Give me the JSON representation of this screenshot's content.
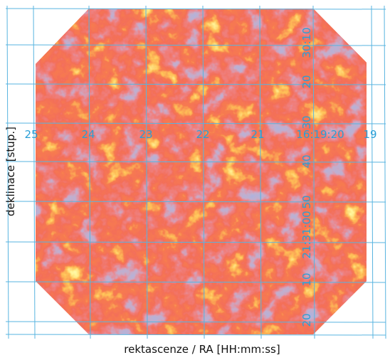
{
  "y_axis_label": "deklinace [stup.]",
  "x_axis_label": "rektascenze / RA [HH:mm:ss]",
  "ra_labels": [
    "25",
    "24",
    "23",
    "22",
    "21",
    "16:19:20",
    "19"
  ],
  "dec_labels": [
    "30:10",
    "20",
    "30",
    "40",
    "50",
    "21:31:00",
    "10",
    "20"
  ]
}
